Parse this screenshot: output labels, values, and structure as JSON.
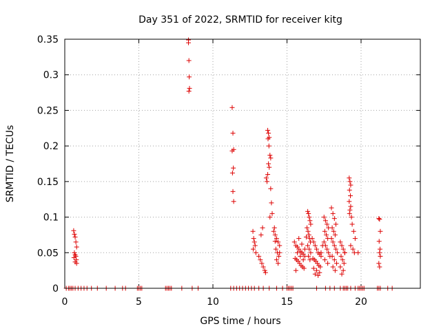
{
  "chart_data": {
    "type": "scatter",
    "title": "Day 351 of 2022, SRMTID for receiver kitg",
    "xlabel": "GPS time / hours",
    "ylabel": "SRMTID / TECUs",
    "xlim": [
      0,
      24
    ],
    "ylim": [
      0,
      0.35
    ],
    "xticks": [
      0,
      5,
      10,
      15,
      20
    ],
    "yticks": [
      0,
      0.05,
      0.1,
      0.15,
      0.2,
      0.25,
      0.3,
      0.35
    ],
    "xtick_labels": [
      "0",
      "5",
      "10",
      "15",
      "20"
    ],
    "ytick_labels": [
      "0",
      "0.05",
      "0.1",
      "0.15",
      "0.2",
      "0.25",
      "0.3",
      "0.35"
    ],
    "grid": true,
    "marker": "+",
    "color": "#dd0000",
    "series": [
      {
        "name": "SRMTID",
        "x": [
          0.6,
          0.65,
          0.7,
          0.75,
          0.8,
          0.65,
          0.7,
          0.75,
          0.62,
          0.78,
          0.7,
          0.8,
          8.35,
          8.35,
          8.38,
          8.4,
          8.42,
          8.38,
          11.3,
          11.35,
          11.4,
          11.3,
          11.38,
          11.32,
          11.35,
          11.4,
          13.7,
          13.75,
          13.8,
          13.72,
          13.78,
          13.85,
          13.9,
          13.75,
          13.8,
          13.7,
          13.6,
          13.65,
          13.9,
          13.95,
          14.0,
          13.85,
          12.7,
          12.75,
          12.8,
          12.85,
          12.72,
          12.9,
          13.1,
          13.2,
          13.3,
          13.4,
          13.5,
          13.55,
          13.25,
          13.35,
          14.1,
          14.2,
          14.3,
          14.4,
          14.5,
          14.25,
          14.35,
          14.45,
          14.15,
          14.3,
          14.4,
          14.5,
          14.2,
          15.5,
          15.6,
          15.7,
          15.8,
          15.9,
          16.0,
          16.1,
          16.2,
          15.55,
          15.65,
          15.75,
          15.85,
          15.95,
          16.05,
          16.15,
          15.6,
          15.8,
          16.0,
          16.2,
          16.3,
          15.7,
          15.9,
          16.1,
          16.4,
          16.45,
          16.5,
          16.55,
          16.6,
          16.35,
          16.42,
          16.48,
          16.52,
          16.58,
          16.4,
          16.5,
          16.6,
          16.45,
          16.55,
          16.7,
          16.8,
          16.9,
          17.0,
          17.1,
          17.2,
          17.3,
          16.75,
          16.85,
          16.95,
          17.05,
          17.15,
          17.25,
          16.8,
          17.0,
          17.2,
          16.9,
          17.1,
          17.3,
          17.4,
          17.5,
          17.6,
          17.7,
          17.8,
          17.55,
          17.65,
          17.75,
          17.5,
          17.6,
          17.7,
          17.8,
          17.9,
          17.55,
          17.75,
          18.0,
          18.1,
          18.2,
          18.3,
          18.05,
          18.15,
          18.25,
          18.0,
          18.1,
          18.2,
          18.3,
          18.4,
          18.05,
          18.2,
          18.35,
          18.1,
          18.25,
          18.6,
          18.7,
          18.8,
          18.9,
          18.65,
          18.75,
          18.85,
          18.6,
          18.8,
          18.7,
          18.9,
          19.2,
          19.25,
          19.3,
          19.22,
          19.28,
          19.2,
          19.3,
          19.25,
          19.22,
          19.35,
          19.4,
          19.5,
          19.6,
          19.3,
          19.45,
          19.55,
          19.8,
          21.2,
          21.25,
          21.3,
          21.22,
          21.28,
          21.25,
          21.3,
          21.2,
          21.25,
          0.1,
          0.25,
          0.35,
          0.45,
          0.55,
          0.7,
          0.9,
          1.1,
          1.3,
          1.5,
          1.8,
          2.2,
          2.8,
          3.4,
          3.9,
          4.1,
          4.9,
          5.0,
          5.1,
          5.2,
          6.8,
          6.9,
          7.0,
          7.1,
          7.2,
          7.9,
          8.6,
          9.0,
          11.2,
          11.4,
          11.6,
          11.8,
          12.0,
          12.2,
          12.4,
          12.6,
          12.8,
          13.1,
          13.4,
          13.8,
          14.3,
          14.7,
          15.0,
          15.1,
          15.2,
          15.3,
          15.4,
          17.0,
          17.6,
          17.9,
          18.2,
          18.6,
          18.8,
          18.9,
          19.0,
          19.1,
          19.3,
          19.6,
          19.8,
          19.9,
          20.0,
          20.1,
          20.2,
          21.1,
          21.2,
          21.3,
          21.8,
          22.1
        ],
        "y": [
          0.081,
          0.076,
          0.072,
          0.065,
          0.058,
          0.05,
          0.047,
          0.045,
          0.043,
          0.04,
          0.037,
          0.035,
          0.349,
          0.345,
          0.32,
          0.297,
          0.281,
          0.277,
          0.254,
          0.218,
          0.195,
          0.193,
          0.169,
          0.162,
          0.136,
          0.122,
          0.222,
          0.218,
          0.212,
          0.21,
          0.2,
          0.187,
          0.183,
          0.175,
          0.17,
          0.16,
          0.155,
          0.15,
          0.14,
          0.12,
          0.105,
          0.1,
          0.08,
          0.07,
          0.065,
          0.06,
          0.055,
          0.05,
          0.045,
          0.04,
          0.035,
          0.03,
          0.025,
          0.022,
          0.075,
          0.085,
          0.08,
          0.075,
          0.07,
          0.065,
          0.06,
          0.055,
          0.05,
          0.045,
          0.085,
          0.04,
          0.035,
          0.05,
          0.066,
          0.065,
          0.06,
          0.058,
          0.055,
          0.052,
          0.05,
          0.048,
          0.045,
          0.042,
          0.04,
          0.038,
          0.035,
          0.032,
          0.03,
          0.028,
          0.025,
          0.07,
          0.062,
          0.055,
          0.072,
          0.05,
          0.045,
          0.04,
          0.108,
          0.105,
          0.1,
          0.095,
          0.09,
          0.085,
          0.08,
          0.075,
          0.07,
          0.065,
          0.06,
          0.055,
          0.05,
          0.045,
          0.04,
          0.07,
          0.065,
          0.06,
          0.055,
          0.05,
          0.048,
          0.045,
          0.042,
          0.04,
          0.038,
          0.035,
          0.032,
          0.03,
          0.028,
          0.025,
          0.022,
          0.02,
          0.018,
          0.05,
          0.06,
          0.1,
          0.095,
          0.09,
          0.085,
          0.08,
          0.075,
          0.07,
          0.065,
          0.06,
          0.055,
          0.05,
          0.045,
          0.04,
          0.035,
          0.113,
          0.105,
          0.098,
          0.09,
          0.085,
          0.08,
          0.075,
          0.07,
          0.065,
          0.06,
          0.055,
          0.05,
          0.045,
          0.04,
          0.035,
          0.03,
          0.025,
          0.065,
          0.06,
          0.055,
          0.05,
          0.045,
          0.04,
          0.035,
          0.03,
          0.025,
          0.02,
          0.05,
          0.155,
          0.15,
          0.145,
          0.138,
          0.13,
          0.122,
          0.115,
          0.11,
          0.105,
          0.1,
          0.09,
          0.08,
          0.07,
          0.06,
          0.055,
          0.05,
          0.05,
          0.098,
          0.097,
          0.08,
          0.066,
          0.055,
          0.05,
          0.045,
          0.035,
          0.03,
          0,
          0,
          0,
          0,
          0,
          0,
          0,
          0,
          0,
          0,
          0,
          0,
          0,
          0,
          0,
          0,
          0,
          0,
          0,
          0,
          0,
          0,
          0,
          0,
          0,
          0,
          0,
          0,
          0,
          0,
          0,
          0,
          0,
          0,
          0,
          0,
          0,
          0,
          0,
          0,
          0,
          0,
          0,
          0,
          0,
          0,
          0,
          0,
          0,
          0,
          0,
          0,
          0,
          0,
          0,
          0,
          0,
          0,
          0,
          0,
          0,
          0,
          0,
          0,
          0,
          0,
          0,
          0
        ]
      }
    ]
  }
}
